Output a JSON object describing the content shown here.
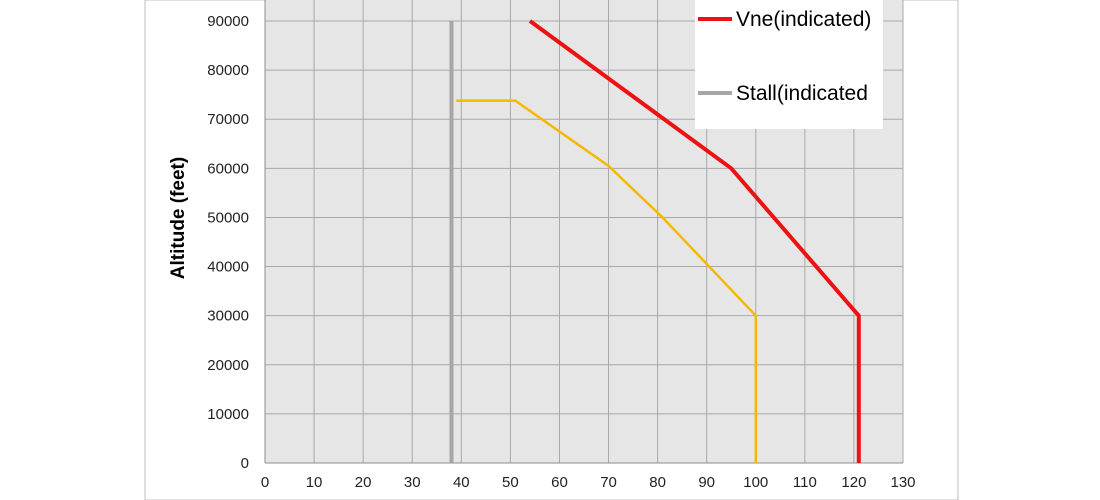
{
  "chart_data": {
    "type": "line",
    "title": "",
    "xlabel": "",
    "ylabel": "Altitude (feet)",
    "xlim": [
      0,
      130
    ],
    "ylim": [
      0,
      90000
    ],
    "x_ticks": [
      0,
      10,
      20,
      30,
      40,
      50,
      60,
      70,
      80,
      90,
      100,
      110,
      120,
      130
    ],
    "y_ticks": [
      0,
      10000,
      20000,
      30000,
      40000,
      50000,
      60000,
      70000,
      80000,
      90000
    ],
    "grid": true,
    "legend_position": "top-right",
    "series": [
      {
        "name": "Vne(indicated)",
        "color": "#ee1111",
        "points": [
          [
            121,
            0
          ],
          [
            121,
            30000
          ],
          [
            95,
            60000
          ],
          [
            54,
            90000
          ]
        ]
      },
      {
        "name": "",
        "color": "#f5b800",
        "points": [
          [
            100,
            0
          ],
          [
            100,
            30000
          ],
          [
            81,
            50000
          ],
          [
            70,
            60500
          ],
          [
            51,
            73800
          ],
          [
            39,
            73800
          ]
        ]
      },
      {
        "name": "Stall(indicated",
        "color": "#a6a6a6",
        "points": [
          [
            38,
            0
          ],
          [
            38,
            90000
          ]
        ]
      }
    ]
  }
}
